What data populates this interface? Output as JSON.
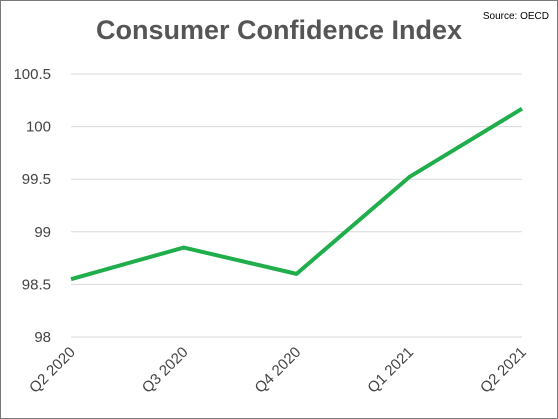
{
  "title": "Consumer Confidence Index",
  "source": "Source: OECD",
  "chart_data": {
    "type": "line",
    "title": "Consumer Confidence Index",
    "categories": [
      "Q2 2020",
      "Q3 2020",
      "Q4 2020",
      "Q1 2021",
      "Q2 2021"
    ],
    "series": [
      {
        "values": [
          98.55,
          98.85,
          98.6,
          99.52,
          100.17
        ],
        "color": "#1fae4b"
      }
    ],
    "ylim": [
      98,
      100.5
    ],
    "yticks": [
      "98",
      "98.5",
      "99",
      "99.5",
      "100",
      "100.5"
    ],
    "grid": true,
    "legend": "none",
    "xlabel": "",
    "ylabel": ""
  }
}
